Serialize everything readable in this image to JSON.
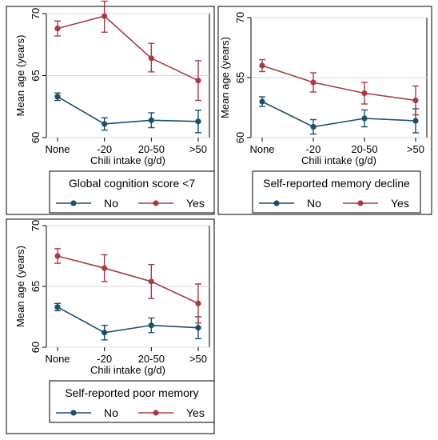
{
  "colors": {
    "no": "#1b4f6e",
    "yes": "#a83a44",
    "grid": "#d6dbe0",
    "frame": "#000000"
  },
  "chart_data": [
    {
      "type": "line",
      "categories": [
        "None",
        "-20",
        "20-50",
        ">50"
      ],
      "xlabel": "Chili intake (g/d)",
      "ylabel": "Mean age (years)",
      "ylim": [
        60,
        70
      ],
      "yticks": [
        60,
        65,
        70
      ],
      "grid": true,
      "legend": {
        "title": "Global cognition score <7",
        "placement": "bottom"
      },
      "series": [
        {
          "name": "No",
          "color": "#1b4f6e",
          "values": [
            63.3,
            61.1,
            61.4,
            61.3
          ],
          "ci_low": [
            63.0,
            60.6,
            60.8,
            60.4
          ],
          "ci_high": [
            63.6,
            61.6,
            62.0,
            62.2
          ]
        },
        {
          "name": "Yes",
          "color": "#a83a44",
          "values": [
            68.8,
            69.8,
            66.4,
            64.6
          ],
          "ci_low": [
            68.2,
            68.5,
            65.3,
            63.0
          ],
          "ci_high": [
            69.4,
            71.0,
            67.6,
            66.2
          ]
        }
      ]
    },
    {
      "type": "line",
      "categories": [
        "None",
        "-20",
        "20-50",
        ">50"
      ],
      "xlabel": "Chili intake (g/d)",
      "ylabel": "Mean age (years)",
      "ylim": [
        60,
        70
      ],
      "yticks": [
        60,
        65,
        70
      ],
      "grid": true,
      "legend": {
        "title": "Self-reported memory decline",
        "placement": "bottom"
      },
      "series": [
        {
          "name": "No",
          "color": "#1b4f6e",
          "values": [
            63.0,
            60.9,
            61.6,
            61.4
          ],
          "ci_low": [
            62.6,
            60.3,
            60.9,
            60.4
          ],
          "ci_high": [
            63.4,
            61.5,
            62.3,
            62.4
          ]
        },
        {
          "name": "Yes",
          "color": "#a83a44",
          "values": [
            66.0,
            64.6,
            63.7,
            63.1
          ],
          "ci_low": [
            65.5,
            63.8,
            62.8,
            61.9
          ],
          "ci_high": [
            66.5,
            65.4,
            64.6,
            64.3
          ]
        }
      ]
    },
    {
      "type": "line",
      "categories": [
        "None",
        "-20",
        "20-50",
        ">50"
      ],
      "xlabel": "Chili intake (g/d)",
      "ylabel": "Mean age (years)",
      "ylim": [
        60,
        70
      ],
      "yticks": [
        60,
        65,
        70
      ],
      "grid": true,
      "legend": {
        "title": "Self-reported poor memory",
        "placement": "bottom"
      },
      "series": [
        {
          "name": "No",
          "color": "#1b4f6e",
          "values": [
            63.3,
            61.2,
            61.8,
            61.6
          ],
          "ci_low": [
            63.0,
            60.6,
            61.2,
            60.7
          ],
          "ci_high": [
            63.6,
            61.8,
            62.4,
            62.5
          ]
        },
        {
          "name": "Yes",
          "color": "#a83a44",
          "values": [
            67.5,
            66.5,
            65.4,
            63.6
          ],
          "ci_low": [
            66.9,
            65.4,
            64.0,
            62.0
          ],
          "ci_high": [
            68.1,
            67.6,
            66.8,
            65.2
          ]
        }
      ]
    }
  ]
}
